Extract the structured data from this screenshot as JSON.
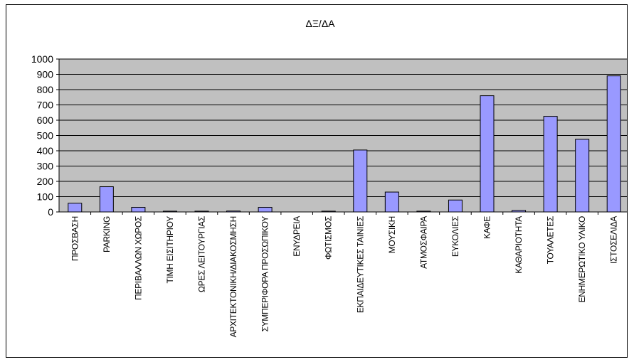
{
  "chart_data": {
    "type": "bar",
    "title": "ΔΞ/ΔΑ",
    "xlabel": "",
    "ylabel": "",
    "ylim": [
      0,
      1000
    ],
    "yticks": [
      0,
      100,
      200,
      300,
      400,
      500,
      600,
      700,
      800,
      900,
      1000
    ],
    "grid": true,
    "legend": "none",
    "categories": [
      "ΠΡΟΣΒΑΣΗ",
      "PARKING",
      "ΠΕΡΙΒΑΛΛΩΝ ΧΩΡΟΣ",
      "ΤΙΜΗ ΕΙΣΙΤΗΡΙΟΥ",
      "ΩΡΕΣ ΛΕΙΤΟΥΡΓΙΑΣ",
      "ΑΡΧΙΤΕΚΤΟΝΙΚΗ/ΔΙΑΚΟΣΜΗΣΗ",
      "ΣΥΜΠΕΡΙΦΟΡΑ ΠΡΟΣΩΠΙΚΟΥ",
      "ΕΝΥΔΡΕΙΑ",
      "ΦΩΤΙΣΜΟΣ",
      "ΕΚΠΑΙΔΕΥΤΙΚΕΣ ΤΑΙΝΙΕΣ",
      "ΜΟΥΣΙΚΗ",
      "ΑΤΜΟΣΦΑΙΡΑ",
      "ΕΥΚΟΛΙΕΣ",
      "ΚΑΦΕ",
      "ΚΑΘΑΡΙΟΤΗΤΑ",
      "ΤΟΥΑΛΕΤΕΣ",
      "ΕΝΗΜΕΡΩΤΙΚΟ ΥΛΙΚΟ",
      "ΙΣΤΟΣΕΛΙΔΑ"
    ],
    "values": [
      57,
      165,
      30,
      5,
      5,
      6,
      30,
      0,
      5,
      405,
      130,
      5,
      78,
      760,
      10,
      625,
      475,
      890
    ],
    "colors": {
      "bar_fill": "#9999ff",
      "bar_stroke": "#000000",
      "plot_bg": "#c0c0c0",
      "grid": "#000000"
    }
  }
}
